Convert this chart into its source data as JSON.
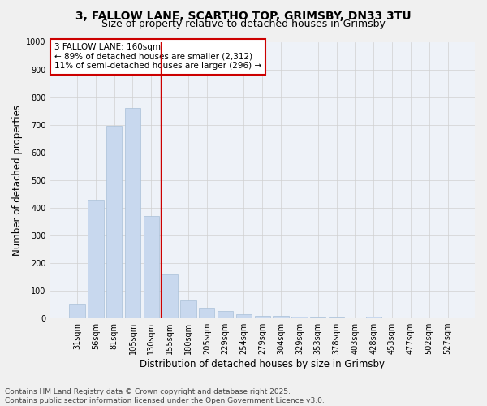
{
  "title_line1": "3, FALLOW LANE, SCARTHO TOP, GRIMSBY, DN33 3TU",
  "title_line2": "Size of property relative to detached houses in Grimsby",
  "xlabel": "Distribution of detached houses by size in Grimsby",
  "ylabel": "Number of detached properties",
  "categories": [
    "31sqm",
    "56sqm",
    "81sqm",
    "105sqm",
    "130sqm",
    "155sqm",
    "180sqm",
    "205sqm",
    "229sqm",
    "254sqm",
    "279sqm",
    "304sqm",
    "329sqm",
    "353sqm",
    "378sqm",
    "403sqm",
    "428sqm",
    "453sqm",
    "477sqm",
    "502sqm",
    "527sqm"
  ],
  "values": [
    50,
    430,
    695,
    760,
    370,
    160,
    65,
    37,
    28,
    15,
    10,
    8,
    5,
    3,
    2,
    1,
    5,
    1,
    1,
    1,
    1
  ],
  "bar_color": "#c8d8ee",
  "bar_edge_color": "#a8c0d8",
  "grid_color": "#d0d0d0",
  "background_color": "#eef2f8",
  "fig_background": "#f0f0f0",
  "vline_x_index": 5,
  "vline_color": "#cc0000",
  "annotation_text": "3 FALLOW LANE: 160sqm\n← 89% of detached houses are smaller (2,312)\n11% of semi-detached houses are larger (296) →",
  "annotation_box_color": "#ffffff",
  "annotation_box_edge": "#cc0000",
  "ylim": [
    0,
    1000
  ],
  "yticks": [
    0,
    100,
    200,
    300,
    400,
    500,
    600,
    700,
    800,
    900,
    1000
  ],
  "footer_line1": "Contains HM Land Registry data © Crown copyright and database right 2025.",
  "footer_line2": "Contains public sector information licensed under the Open Government Licence v3.0.",
  "title_fontsize": 10,
  "subtitle_fontsize": 9,
  "axis_label_fontsize": 8.5,
  "tick_fontsize": 7,
  "footer_fontsize": 6.5,
  "annotation_fontsize": 7.5
}
